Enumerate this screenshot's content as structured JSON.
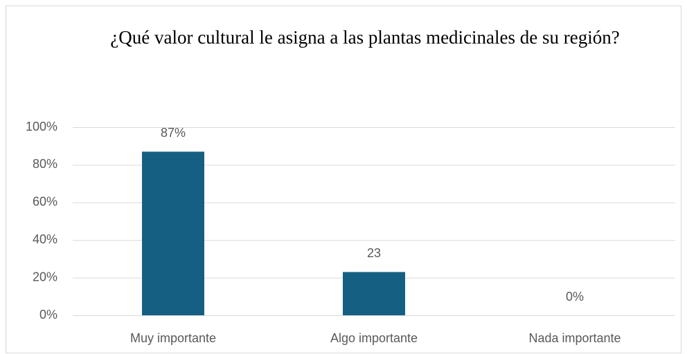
{
  "chart_data": {
    "type": "bar",
    "title": "¿Qué valor cultural le asigna a las plantas medicinales de su región?",
    "categories": [
      "Muy importante",
      "Algo importante",
      "Nada importante"
    ],
    "values": [
      87,
      23,
      0
    ],
    "value_labels": [
      "87%",
      "23",
      "0%"
    ],
    "color": "#156082",
    "ylim": [
      0,
      100
    ],
    "yticks": [
      {
        "value": 0,
        "label": "0%"
      },
      {
        "value": 20,
        "label": "20%"
      },
      {
        "value": 40,
        "label": "40%"
      },
      {
        "value": 60,
        "label": "60%"
      },
      {
        "value": 80,
        "label": "80%"
      },
      {
        "value": 100,
        "label": "100%"
      }
    ],
    "grid": true
  }
}
